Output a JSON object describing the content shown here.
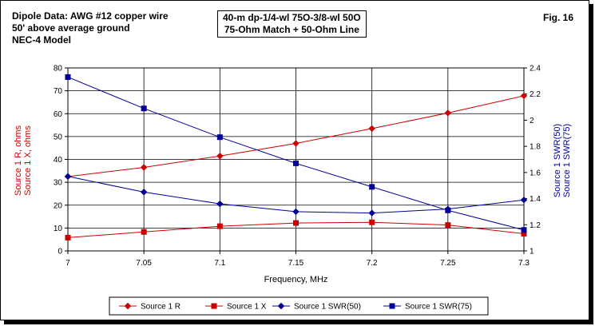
{
  "header": {
    "left_lines": [
      "Dipole Data:  AWG #12 copper wire",
      "50' above average ground",
      "NEC-4 Model"
    ],
    "center_lines": [
      "40-m dp-1/4-wl 75O-3/8-wl 50O",
      "75-Ohm Match + 50-Ohm Line"
    ],
    "fig": "Fig. 16"
  },
  "chart_data": {
    "type": "line",
    "x": [
      7,
      7.05,
      7.1,
      7.15,
      7.2,
      7.25,
      7.3
    ],
    "x_tick_labels": [
      "7",
      "7.05",
      "7.1",
      "7.15",
      "7.2",
      "7.25",
      "7.3"
    ],
    "xlim": [
      7,
      7.3
    ],
    "xlabel": "Frequency, MHz",
    "ylim_left": [
      0,
      80
    ],
    "ylim_right": [
      1,
      2.4
    ],
    "y_left_ticks": [
      0,
      10,
      20,
      30,
      40,
      50,
      60,
      70,
      80
    ],
    "y_right_ticks": [
      "1",
      "1.2",
      "1.4",
      "1.6",
      "1.8",
      "2",
      "2.2",
      "2.4"
    ],
    "ylabel_left": [
      "Source 1 R,  ohms",
      "Source 1 X,  ohms"
    ],
    "ylabel_right": [
      "Source 1 SWR(50)",
      "Source 1 SWR(75)"
    ],
    "grid": true,
    "legend_position": "bottom",
    "series": [
      {
        "name": "Source 1 R",
        "axis": "left",
        "color": "#cc0000",
        "marker": "diamond",
        "values": [
          32.5,
          36.5,
          41.5,
          47,
          53.5,
          60.3,
          67.8
        ]
      },
      {
        "name": "Source 1 X",
        "axis": "left",
        "color": "#cc0000",
        "marker": "square",
        "values": [
          5.8,
          8.3,
          10.8,
          12.2,
          12.5,
          11.3,
          7.5
        ]
      },
      {
        "name": "Source 1 SWR(50)",
        "axis": "right",
        "color": "#000099",
        "marker": "diamond",
        "values": [
          1.57,
          1.45,
          1.36,
          1.3,
          1.29,
          1.32,
          1.39
        ]
      },
      {
        "name": "Source 1 SWR(75)",
        "axis": "right",
        "color": "#000099",
        "marker": "square",
        "values": [
          2.33,
          2.09,
          1.87,
          1.67,
          1.49,
          1.31,
          1.16
        ]
      }
    ]
  }
}
